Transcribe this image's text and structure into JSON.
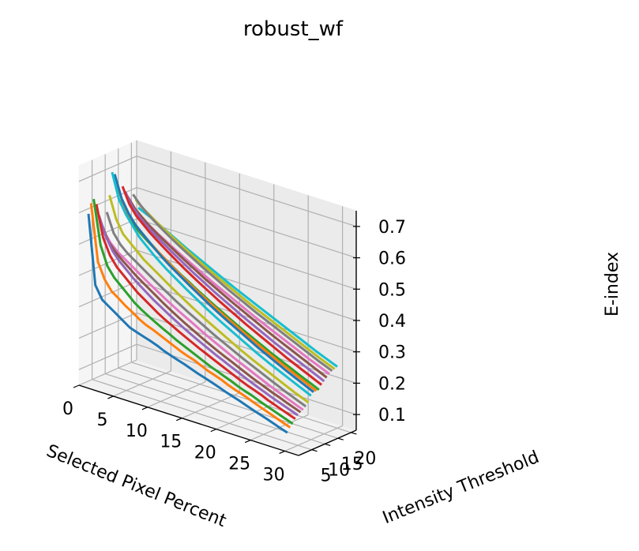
{
  "chart_data": {
    "type": "line",
    "projection": "3d",
    "title": "robust_wf",
    "xlabel": "Selected Pixel Percent",
    "ylabel": "Intensity Threshold",
    "zlabel": "E-index",
    "xlim": [
      0,
      32
    ],
    "ylim": [
      0,
      22
    ],
    "zlim": [
      0.05,
      0.75
    ],
    "xticks": [
      "0",
      "5",
      "10",
      "15",
      "20",
      "25",
      "30"
    ],
    "yticks": [
      "5",
      "10",
      "15",
      "20"
    ],
    "zticks": [
      "0.1",
      "0.2",
      "0.3",
      "0.4",
      "0.5",
      "0.6",
      "0.7"
    ],
    "grid": true,
    "x": [
      1,
      2,
      3,
      4,
      5,
      6,
      7,
      8,
      9,
      10,
      11,
      12,
      13,
      14,
      15,
      16,
      17,
      18,
      19,
      20,
      21,
      22,
      23,
      24,
      25,
      26,
      27,
      28,
      29,
      30
    ],
    "series": [
      {
        "y": 1,
        "color": "#1f77b4",
        "z": [
          0.6,
          0.38,
          0.34,
          0.325,
          0.31,
          0.295,
          0.28,
          0.272,
          0.265,
          0.258,
          0.25,
          0.24,
          0.232,
          0.225,
          0.218,
          0.21,
          0.202,
          0.195,
          0.188,
          0.18,
          0.172,
          0.165,
          0.158,
          0.15,
          0.142,
          0.135,
          0.128,
          0.12,
          0.112,
          0.105
        ]
      },
      {
        "y": 2,
        "color": "#ff7f0e",
        "z": [
          0.63,
          0.45,
          0.4,
          0.37,
          0.355,
          0.338,
          0.325,
          0.31,
          0.298,
          0.29,
          0.28,
          0.27,
          0.26,
          0.25,
          0.242,
          0.235,
          0.225,
          0.215,
          0.208,
          0.2,
          0.19,
          0.182,
          0.175,
          0.167,
          0.158,
          0.15,
          0.142,
          0.134,
          0.126,
          0.118
        ]
      },
      {
        "y": 3,
        "color": "#2ca02c",
        "z": [
          0.64,
          0.5,
          0.44,
          0.41,
          0.39,
          0.37,
          0.35,
          0.335,
          0.322,
          0.31,
          0.298,
          0.287,
          0.275,
          0.265,
          0.255,
          0.245,
          0.235,
          0.225,
          0.217,
          0.208,
          0.2,
          0.19,
          0.182,
          0.175,
          0.166,
          0.158,
          0.15,
          0.142,
          0.134,
          0.126
        ]
      },
      {
        "y": 4,
        "color": "#d62728",
        "z": [
          0.62,
          0.52,
          0.47,
          0.44,
          0.42,
          0.4,
          0.38,
          0.365,
          0.35,
          0.335,
          0.322,
          0.31,
          0.298,
          0.287,
          0.276,
          0.265,
          0.255,
          0.245,
          0.235,
          0.225,
          0.215,
          0.205,
          0.196,
          0.188,
          0.18,
          0.17,
          0.162,
          0.154,
          0.146,
          0.138
        ]
      },
      {
        "y": 5,
        "color": "#9467bd",
        "z": [
          0.58,
          0.52,
          0.48,
          0.455,
          0.435,
          0.415,
          0.398,
          0.382,
          0.366,
          0.352,
          0.338,
          0.325,
          0.312,
          0.3,
          0.288,
          0.277,
          0.266,
          0.255,
          0.245,
          0.235,
          0.225,
          0.215,
          0.205,
          0.196,
          0.187,
          0.178,
          0.17,
          0.162,
          0.154,
          0.146
        ]
      },
      {
        "y": 6,
        "color": "#8c564b",
        "z": [
          0.55,
          0.5,
          0.475,
          0.455,
          0.438,
          0.42,
          0.405,
          0.39,
          0.375,
          0.36,
          0.346,
          0.333,
          0.32,
          0.308,
          0.296,
          0.284,
          0.273,
          0.262,
          0.252,
          0.242,
          0.232,
          0.222,
          0.212,
          0.203,
          0.194,
          0.185,
          0.177,
          0.168,
          0.16,
          0.152
        ]
      },
      {
        "y": 7,
        "color": "#e377c2",
        "z": [
          0.52,
          0.49,
          0.47,
          0.455,
          0.44,
          0.425,
          0.41,
          0.396,
          0.382,
          0.368,
          0.355,
          0.342,
          0.33,
          0.318,
          0.306,
          0.294,
          0.283,
          0.272,
          0.261,
          0.25,
          0.24,
          0.23,
          0.22,
          0.21,
          0.2,
          0.191,
          0.182,
          0.173,
          0.164,
          0.156
        ]
      },
      {
        "y": 8,
        "color": "#7f7f7f",
        "z": [
          0.58,
          0.52,
          0.49,
          0.47,
          0.455,
          0.44,
          0.425,
          0.41,
          0.396,
          0.382,
          0.368,
          0.355,
          0.342,
          0.33,
          0.318,
          0.306,
          0.294,
          0.283,
          0.272,
          0.261,
          0.25,
          0.24,
          0.23,
          0.22,
          0.21,
          0.2,
          0.19,
          0.181,
          0.172,
          0.163
        ]
      },
      {
        "y": 9,
        "color": "#bcbd22",
        "z": [
          0.63,
          0.56,
          0.52,
          0.5,
          0.48,
          0.46,
          0.445,
          0.43,
          0.415,
          0.4,
          0.386,
          0.372,
          0.358,
          0.345,
          0.332,
          0.32,
          0.308,
          0.296,
          0.284,
          0.272,
          0.261,
          0.25,
          0.24,
          0.23,
          0.22,
          0.21,
          0.2,
          0.19,
          0.181,
          0.172
        ]
      },
      {
        "y": 10,
        "color": "#17becf",
        "z": [
          0.7,
          0.62,
          0.58,
          0.55,
          0.52,
          0.5,
          0.48,
          0.462,
          0.445,
          0.43,
          0.415,
          0.4,
          0.386,
          0.372,
          0.358,
          0.345,
          0.332,
          0.32,
          0.308,
          0.296,
          0.284,
          0.272,
          0.261,
          0.25,
          0.24,
          0.23,
          0.22,
          0.21,
          0.2,
          0.19
        ]
      },
      {
        "y": 11,
        "color": "#1f77b4",
        "z": [
          0.69,
          0.62,
          0.58,
          0.55,
          0.53,
          0.51,
          0.49,
          0.472,
          0.455,
          0.44,
          0.425,
          0.41,
          0.396,
          0.382,
          0.368,
          0.355,
          0.342,
          0.33,
          0.318,
          0.306,
          0.294,
          0.282,
          0.271,
          0.26,
          0.249,
          0.238,
          0.228,
          0.218,
          0.208,
          0.198
        ]
      },
      {
        "y": 12,
        "color": "#ff7f0e",
        "z": [
          0.65,
          0.59,
          0.56,
          0.535,
          0.515,
          0.497,
          0.48,
          0.464,
          0.448,
          0.433,
          0.418,
          0.404,
          0.39,
          0.377,
          0.364,
          0.351,
          0.339,
          0.327,
          0.315,
          0.303,
          0.292,
          0.281,
          0.27,
          0.259,
          0.248,
          0.238,
          0.228,
          0.218,
          0.208,
          0.198
        ]
      },
      {
        "y": 13,
        "color": "#2ca02c",
        "z": [
          0.6,
          0.56,
          0.535,
          0.515,
          0.498,
          0.482,
          0.467,
          0.452,
          0.437,
          0.423,
          0.41,
          0.396,
          0.383,
          0.37,
          0.358,
          0.346,
          0.334,
          0.322,
          0.311,
          0.3,
          0.289,
          0.278,
          0.267,
          0.257,
          0.247,
          0.237,
          0.227,
          0.217,
          0.208,
          0.198
        ]
      },
      {
        "y": 14,
        "color": "#d62728",
        "z": [
          0.64,
          0.59,
          0.56,
          0.54,
          0.52,
          0.503,
          0.487,
          0.471,
          0.456,
          0.441,
          0.427,
          0.413,
          0.4,
          0.387,
          0.374,
          0.362,
          0.35,
          0.338,
          0.326,
          0.315,
          0.304,
          0.293,
          0.282,
          0.271,
          0.26,
          0.25,
          0.24,
          0.23,
          0.22,
          0.21
        ]
      },
      {
        "y": 15,
        "color": "#9467bd",
        "z": [
          0.62,
          0.58,
          0.555,
          0.535,
          0.518,
          0.502,
          0.487,
          0.472,
          0.458,
          0.444,
          0.43,
          0.417,
          0.404,
          0.391,
          0.379,
          0.367,
          0.355,
          0.343,
          0.332,
          0.321,
          0.31,
          0.299,
          0.288,
          0.278,
          0.268,
          0.258,
          0.248,
          0.238,
          0.228,
          0.218
        ]
      },
      {
        "y": 16,
        "color": "#8c564b",
        "z": [
          0.6,
          0.57,
          0.55,
          0.532,
          0.516,
          0.501,
          0.487,
          0.473,
          0.459,
          0.446,
          0.433,
          0.42,
          0.408,
          0.396,
          0.384,
          0.372,
          0.361,
          0.35,
          0.339,
          0.328,
          0.317,
          0.306,
          0.296,
          0.286,
          0.276,
          0.266,
          0.256,
          0.246,
          0.236,
          0.226
        ]
      },
      {
        "y": 17,
        "color": "#e377c2",
        "z": [
          0.57,
          0.55,
          0.535,
          0.52,
          0.506,
          0.493,
          0.48,
          0.467,
          0.455,
          0.443,
          0.431,
          0.419,
          0.407,
          0.396,
          0.385,
          0.374,
          0.363,
          0.352,
          0.341,
          0.331,
          0.321,
          0.311,
          0.301,
          0.291,
          0.281,
          0.271,
          0.261,
          0.252,
          0.243,
          0.234
        ]
      },
      {
        "y": 18,
        "color": "#7f7f7f",
        "z": [
          0.6,
          0.575,
          0.555,
          0.538,
          0.522,
          0.507,
          0.493,
          0.479,
          0.466,
          0.453,
          0.44,
          0.428,
          0.416,
          0.404,
          0.392,
          0.381,
          0.37,
          0.359,
          0.348,
          0.338,
          0.328,
          0.318,
          0.308,
          0.298,
          0.288,
          0.278,
          0.268,
          0.258,
          0.249,
          0.24
        ]
      },
      {
        "y": 19,
        "color": "#bcbd22",
        "z": [
          0.58,
          0.56,
          0.545,
          0.53,
          0.516,
          0.502,
          0.489,
          0.476,
          0.463,
          0.451,
          0.439,
          0.427,
          0.415,
          0.404,
          0.393,
          0.382,
          0.371,
          0.36,
          0.35,
          0.34,
          0.33,
          0.32,
          0.31,
          0.3,
          0.29,
          0.28,
          0.27,
          0.26,
          0.251,
          0.242
        ]
      },
      {
        "y": 20,
        "color": "#17becf",
        "z": [
          0.55,
          0.54,
          0.53,
          0.518,
          0.506,
          0.494,
          0.482,
          0.47,
          0.459,
          0.448,
          0.437,
          0.426,
          0.415,
          0.404,
          0.393,
          0.383,
          0.373,
          0.363,
          0.353,
          0.343,
          0.333,
          0.323,
          0.313,
          0.303,
          0.293,
          0.283,
          0.273,
          0.264,
          0.255,
          0.246
        ]
      }
    ]
  }
}
